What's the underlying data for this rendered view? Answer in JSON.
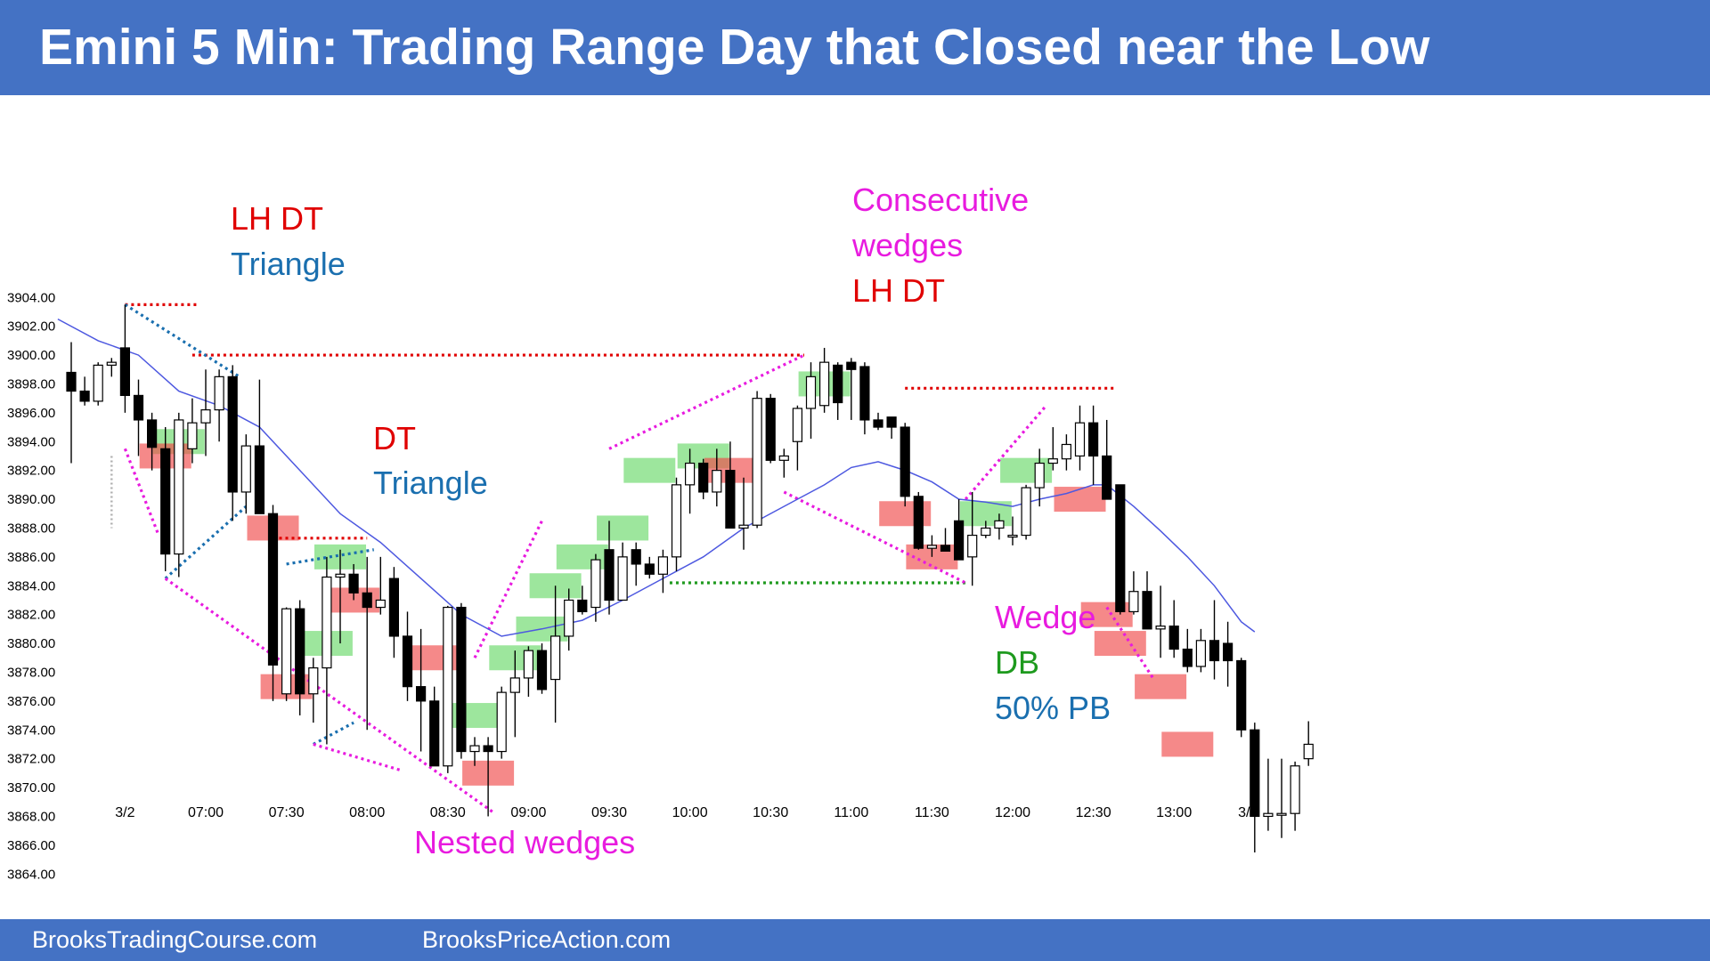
{
  "header": {
    "title": "Emini 5 Min: Trading Range Day that Closed near the Low"
  },
  "footer": {
    "left": "BrooksTradingCourse.com",
    "right": "BrooksPriceAction.com"
  },
  "colors": {
    "header_bg": "#4472c4",
    "ema": "#4d58e0",
    "red": "#e00000",
    "blue": "#1a6faf",
    "magenta": "#e81bdf",
    "green": "#1e9a1e",
    "bull_box": "#5bd65b",
    "bear_box": "#f04a4a"
  },
  "chart_data": {
    "type": "candlestick",
    "title": "Emini 5 Min: Trading Range Day that Closed near the Low",
    "ylim": [
      3864,
      3904
    ],
    "y_ticks": [
      "3904.00",
      "3902.00",
      "3900.00",
      "3898.00",
      "3896.00",
      "3894.00",
      "3892.00",
      "3890.00",
      "3888.00",
      "3886.00",
      "3884.00",
      "3882.00",
      "3880.00",
      "3878.00",
      "3876.00",
      "3874.00",
      "3872.00",
      "3870.00",
      "3868.00",
      "3866.00",
      "3864.00"
    ],
    "x_ticks": [
      "3/2",
      "07:00",
      "07:30",
      "08:00",
      "08:30",
      "09:00",
      "09:30",
      "10:00",
      "10:30",
      "11:00",
      "11:30",
      "12:00",
      "12:30",
      "13:00",
      "3/3"
    ],
    "bars": [
      [
        3898.8,
        3900.9,
        3892.5,
        3897.5
      ],
      [
        3897.5,
        3898.5,
        3896.5,
        3896.8
      ],
      [
        3896.8,
        3899.5,
        3896.5,
        3899.3
      ],
      [
        3899.3,
        3899.8,
        3898.5,
        3899.5
      ],
      [
        3900.5,
        3903.5,
        3896.0,
        3897.2
      ],
      [
        3897.2,
        3898.3,
        3893.0,
        3895.5
      ],
      [
        3895.5,
        3896.0,
        3892.0,
        3893.6
      ],
      [
        3893.5,
        3895.0,
        3885.0,
        3886.2
      ],
      [
        3886.2,
        3896.0,
        3884.6,
        3895.5
      ],
      [
        3893.5,
        3897.0,
        3892.5,
        3895.3
      ],
      [
        3895.3,
        3899.0,
        3893.0,
        3896.2
      ],
      [
        3896.2,
        3899.0,
        3894.0,
        3898.5
      ],
      [
        3898.5,
        3899.3,
        3888.5,
        3890.5
      ],
      [
        3890.5,
        3894.5,
        3889.0,
        3893.7
      ],
      [
        3893.7,
        3898.3,
        3889.0,
        3889.0
      ],
      [
        3889.0,
        3889.6,
        3876.0,
        3878.5
      ],
      [
        3876.5,
        3882.5,
        3876.0,
        3882.4
      ],
      [
        3882.4,
        3883.0,
        3875.0,
        3876.5
      ],
      [
        3876.5,
        3879.0,
        3874.5,
        3878.3
      ],
      [
        3878.3,
        3886.0,
        3873.0,
        3884.6
      ],
      [
        3884.6,
        3886.5,
        3880.0,
        3884.8
      ],
      [
        3884.8,
        3885.5,
        3883.0,
        3883.5
      ],
      [
        3883.5,
        3886.0,
        3874.0,
        3882.5
      ],
      [
        3882.5,
        3886.0,
        3882.0,
        3883.0
      ],
      [
        3884.5,
        3885.3,
        3879.0,
        3880.5
      ],
      [
        3880.5,
        3882.2,
        3876.0,
        3877.0
      ],
      [
        3877.0,
        3881.0,
        3872.5,
        3876.0
      ],
      [
        3876.0,
        3877.0,
        3871.5,
        3871.5
      ],
      [
        3871.5,
        3882.6,
        3871.0,
        3882.5
      ],
      [
        3882.5,
        3882.8,
        3872.0,
        3872.5
      ],
      [
        3872.5,
        3873.5,
        3871.5,
        3872.9
      ],
      [
        3872.9,
        3873.5,
        3868.0,
        3872.5
      ],
      [
        3872.5,
        3877.0,
        3872.0,
        3876.6
      ],
      [
        3876.6,
        3879.5,
        3873.5,
        3877.6
      ],
      [
        3877.6,
        3879.8,
        3876.3,
        3879.5
      ],
      [
        3879.5,
        3880.0,
        3876.5,
        3876.8
      ],
      [
        3877.5,
        3884.0,
        3874.5,
        3880.5
      ],
      [
        3880.5,
        3883.8,
        3879.5,
        3883.0
      ],
      [
        3883.0,
        3884.0,
        3882.0,
        3882.2
      ],
      [
        3882.5,
        3886.2,
        3881.5,
        3885.8
      ],
      [
        3886.5,
        3888.5,
        3882.0,
        3883.0
      ],
      [
        3883.0,
        3887.0,
        3883.5,
        3886.0
      ],
      [
        3886.5,
        3887.0,
        3884.0,
        3885.5
      ],
      [
        3885.5,
        3886.0,
        3884.5,
        3884.8
      ],
      [
        3884.8,
        3886.5,
        3883.5,
        3886.0
      ],
      [
        3886.0,
        3891.5,
        3885.0,
        3891.0
      ],
      [
        3891.0,
        3893.5,
        3889.0,
        3892.5
      ],
      [
        3892.5,
        3892.8,
        3890.0,
        3890.5
      ],
      [
        3890.5,
        3893.5,
        3889.5,
        3892.0
      ],
      [
        3892.0,
        3894.0,
        3888.5,
        3888.0
      ],
      [
        3888.0,
        3891.5,
        3886.5,
        3888.2
      ],
      [
        3888.2,
        3897.5,
        3888.0,
        3897.0
      ],
      [
        3897.0,
        3897.3,
        3892.5,
        3892.7
      ],
      [
        3892.7,
        3893.5,
        3891.5,
        3893.0
      ],
      [
        3894.0,
        3896.5,
        3892.0,
        3896.3
      ],
      [
        3896.3,
        3899.5,
        3894.2,
        3898.5
      ],
      [
        3896.5,
        3900.5,
        3896.0,
        3899.5
      ],
      [
        3899.3,
        3899.5,
        3895.5,
        3896.7
      ],
      [
        3899.5,
        3899.8,
        3895.5,
        3899.0
      ],
      [
        3899.2,
        3899.5,
        3894.5,
        3895.5
      ],
      [
        3895.5,
        3896.0,
        3894.8,
        3895.0
      ],
      [
        3895.7,
        3895.7,
        3894.2,
        3895.0
      ],
      [
        3895.0,
        3895.3,
        3889.5,
        3890.2
      ],
      [
        3890.2,
        3890.5,
        3886.5,
        3886.6
      ],
      [
        3886.6,
        3887.5,
        3886.0,
        3886.8
      ],
      [
        3886.8,
        3888.0,
        3886.5,
        3886.4
      ],
      [
        3888.5,
        3890.0,
        3886.0,
        3885.8
      ],
      [
        3886.0,
        3890.5,
        3884.0,
        3887.5
      ],
      [
        3887.5,
        3888.5,
        3887.3,
        3888.0
      ],
      [
        3888.0,
        3889.0,
        3887.2,
        3888.5
      ],
      [
        3887.5,
        3888.8,
        3886.8,
        3887.5
      ],
      [
        3887.5,
        3891.0,
        3887.2,
        3890.8
      ],
      [
        3890.8,
        3893.5,
        3889.5,
        3892.5
      ],
      [
        3892.5,
        3895.0,
        3892.0,
        3892.8
      ],
      [
        3892.8,
        3894.5,
        3892.0,
        3893.8
      ],
      [
        3893.0,
        3896.5,
        3892.0,
        3895.3
      ],
      [
        3895.3,
        3896.5,
        3891.0,
        3893.0
      ],
      [
        3893.0,
        3895.5,
        3891.0,
        3890.0
      ],
      [
        3891.0,
        3891.0,
        3882.0,
        3882.2
      ],
      [
        3882.2,
        3885.0,
        3882.0,
        3883.6
      ],
      [
        3883.6,
        3885.0,
        3881.0,
        3881.0
      ],
      [
        3881.0,
        3884.0,
        3879.0,
        3881.2
      ],
      [
        3881.2,
        3883.0,
        3879.0,
        3879.6
      ],
      [
        3879.6,
        3881.0,
        3878.0,
        3878.4
      ],
      [
        3878.4,
        3881.0,
        3878.0,
        3880.2
      ],
      [
        3880.2,
        3883.0,
        3877.5,
        3878.8
      ],
      [
        3880.0,
        3881.5,
        3877.0,
        3878.8
      ],
      [
        3878.8,
        3879.0,
        3873.5,
        3874.0
      ],
      [
        3874.0,
        3874.5,
        3865.5,
        3868.0
      ],
      [
        3868.0,
        3872.0,
        3867.0,
        3868.2
      ],
      [
        3868.2,
        3872.0,
        3866.5,
        3868.2
      ],
      [
        3868.2,
        3871.8,
        3867.0,
        3871.5
      ],
      [
        3872.0,
        3874.6,
        3871.5,
        3873.0
      ]
    ],
    "ema20": [
      [
        -1,
        3902.5
      ],
      [
        2,
        3901.0
      ],
      [
        5,
        3900.0
      ],
      [
        8,
        3897.5
      ],
      [
        11,
        3896.5
      ],
      [
        14,
        3895.0
      ],
      [
        17,
        3892.0
      ],
      [
        20,
        3889.0
      ],
      [
        23,
        3887.0
      ],
      [
        26,
        3884.5
      ],
      [
        29,
        3882.0
      ],
      [
        32,
        3880.5
      ],
      [
        35,
        3881.0
      ],
      [
        38,
        3881.6
      ],
      [
        41,
        3883.0
      ],
      [
        44,
        3884.5
      ],
      [
        47,
        3886.0
      ],
      [
        50,
        3888.0
      ],
      [
        53,
        3889.5
      ],
      [
        56,
        3891.0
      ],
      [
        58,
        3892.2
      ],
      [
        60,
        3892.6
      ],
      [
        62,
        3892.0
      ],
      [
        64,
        3891.2
      ],
      [
        66,
        3890.0
      ],
      [
        68,
        3889.8
      ],
      [
        70,
        3889.5
      ],
      [
        72,
        3890.0
      ],
      [
        74,
        3890.4
      ],
      [
        76,
        3891.0
      ],
      [
        77,
        3891.0
      ],
      [
        79,
        3889.5
      ],
      [
        81,
        3887.8
      ],
      [
        83,
        3886.0
      ],
      [
        85,
        3884.0
      ],
      [
        87,
        3881.5
      ],
      [
        88,
        3880.8
      ]
    ],
    "bull_boxes": [
      [
        8,
        3894
      ],
      [
        19,
        3880
      ],
      [
        20,
        3886
      ],
      [
        30,
        3875
      ],
      [
        33,
        3879
      ],
      [
        35,
        3881
      ],
      [
        36,
        3884
      ],
      [
        38,
        3886
      ],
      [
        41,
        3888
      ],
      [
        43,
        3892
      ],
      [
        47,
        3893
      ],
      [
        56,
        3898
      ],
      [
        68,
        3889
      ],
      [
        71,
        3892
      ]
    ],
    "bear_boxes": [
      [
        7,
        3893
      ],
      [
        15,
        3888
      ],
      [
        16,
        3877
      ],
      [
        21,
        3883
      ],
      [
        27,
        3879
      ],
      [
        31,
        3871
      ],
      [
        49,
        3892
      ],
      [
        62,
        3889
      ],
      [
        64,
        3886
      ],
      [
        75,
        3890
      ],
      [
        77,
        3882
      ],
      [
        78,
        3880
      ],
      [
        81,
        3877
      ],
      [
        83,
        3873
      ]
    ],
    "annotations": [
      {
        "lines": [
          "LH DT"
        ],
        "colors": [
          "red"
        ]
      },
      {
        "lines": [
          "Triangle"
        ],
        "colors": [
          "blue"
        ]
      },
      {
        "lines": [
          "DT"
        ],
        "colors": [
          "red"
        ]
      },
      {
        "lines": [
          "Triangle"
        ],
        "colors": [
          "blue"
        ]
      },
      {
        "lines": [
          "Nested wedges"
        ],
        "colors": [
          "magenta"
        ]
      },
      {
        "lines": [
          "Consecutive",
          "wedges",
          "LH DT"
        ],
        "colors": [
          "magenta",
          "magenta",
          "red"
        ]
      },
      {
        "lines": [
          "Wedge",
          "DB",
          "50% PB"
        ],
        "colors": [
          "magenta",
          "green",
          "blue"
        ]
      }
    ]
  }
}
